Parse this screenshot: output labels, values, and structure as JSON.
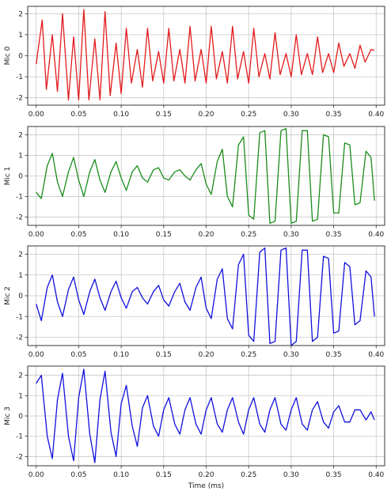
{
  "chart_data": [
    {
      "type": "line",
      "ylabel": "Mic 0",
      "xlabel": "",
      "color": "#e31a1c",
      "xlim": [
        -0.01,
        0.41
      ],
      "ylim": [
        -2.35,
        2.35
      ],
      "xticks": [
        "0.00",
        "0.05",
        "0.10",
        "0.15",
        "0.20",
        "0.25",
        "0.30",
        "0.35",
        "0.40"
      ],
      "yticks": [
        "-2",
        "-1",
        "0",
        "1",
        "2"
      ],
      "grid": true,
      "x": [
        0.0,
        0.007,
        0.012,
        0.019,
        0.025,
        0.031,
        0.038,
        0.044,
        0.05,
        0.056,
        0.062,
        0.069,
        0.075,
        0.081,
        0.087,
        0.094,
        0.1,
        0.106,
        0.112,
        0.119,
        0.125,
        0.131,
        0.137,
        0.144,
        0.15,
        0.156,
        0.162,
        0.169,
        0.175,
        0.181,
        0.187,
        0.194,
        0.2,
        0.206,
        0.212,
        0.219,
        0.225,
        0.231,
        0.237,
        0.244,
        0.25,
        0.256,
        0.262,
        0.269,
        0.275,
        0.281,
        0.287,
        0.294,
        0.3,
        0.306,
        0.312,
        0.319,
        0.325,
        0.331,
        0.337,
        0.344,
        0.35,
        0.356,
        0.362,
        0.369,
        0.375,
        0.381,
        0.387,
        0.394,
        0.398
      ],
      "values": [
        -0.4,
        1.7,
        -1.6,
        1.0,
        -1.7,
        2.0,
        -2.1,
        0.9,
        -2.1,
        2.2,
        -2.1,
        0.8,
        -2.1,
        2.1,
        -1.9,
        0.6,
        -1.8,
        1.3,
        -1.3,
        0.3,
        -1.5,
        1.3,
        -1.2,
        0.2,
        -1.3,
        1.3,
        -1.2,
        0.3,
        -1.3,
        1.4,
        -1.2,
        0.3,
        -1.3,
        1.4,
        -1.1,
        0.2,
        -1.3,
        1.4,
        -1.1,
        0.2,
        -1.3,
        1.3,
        -1.0,
        0.1,
        -1.1,
        1.1,
        -0.9,
        0.1,
        -1.0,
        1.0,
        -0.9,
        0.1,
        -0.9,
        0.9,
        -0.8,
        0.1,
        -0.8,
        0.6,
        -0.5,
        0.1,
        -0.6,
        0.5,
        -0.3,
        0.3,
        0.25
      ]
    },
    {
      "type": "line",
      "ylabel": "Mic 1",
      "xlabel": "",
      "color": "#1a8c1a",
      "xlim": [
        -0.01,
        0.41
      ],
      "ylim": [
        -2.4,
        2.4
      ],
      "xticks": [
        "0.00",
        "0.05",
        "0.10",
        "0.15",
        "0.20",
        "0.25",
        "0.30",
        "0.35",
        "0.40"
      ],
      "yticks": [
        "-2",
        "-1",
        "0",
        "1",
        "2"
      ],
      "grid": true,
      "x": [
        0.0,
        0.006,
        0.013,
        0.019,
        0.025,
        0.031,
        0.038,
        0.044,
        0.05,
        0.056,
        0.063,
        0.069,
        0.075,
        0.081,
        0.088,
        0.094,
        0.1,
        0.106,
        0.113,
        0.119,
        0.125,
        0.131,
        0.138,
        0.144,
        0.15,
        0.156,
        0.163,
        0.169,
        0.175,
        0.181,
        0.188,
        0.194,
        0.2,
        0.206,
        0.213,
        0.219,
        0.225,
        0.231,
        0.238,
        0.244,
        0.25,
        0.256,
        0.263,
        0.269,
        0.275,
        0.281,
        0.288,
        0.294,
        0.3,
        0.306,
        0.313,
        0.319,
        0.325,
        0.331,
        0.338,
        0.344,
        0.35,
        0.356,
        0.363,
        0.369,
        0.375,
        0.381,
        0.388,
        0.394,
        0.398
      ],
      "values": [
        -0.8,
        -1.1,
        0.5,
        1.1,
        -0.3,
        -1.0,
        0.2,
        0.9,
        -0.2,
        -1.0,
        0.2,
        0.8,
        -0.2,
        -0.8,
        0.2,
        0.7,
        -0.1,
        -0.7,
        0.2,
        0.5,
        -0.1,
        -0.3,
        0.3,
        0.4,
        -0.1,
        -0.2,
        0.2,
        0.3,
        0.0,
        -0.2,
        0.3,
        0.6,
        -0.4,
        -0.9,
        0.7,
        1.3,
        -1.0,
        -1.5,
        1.5,
        1.9,
        -1.9,
        -2.1,
        2.1,
        2.2,
        -2.3,
        -2.2,
        2.2,
        2.3,
        -2.3,
        -2.2,
        2.2,
        2.2,
        -2.2,
        -2.1,
        2.0,
        1.9,
        -1.8,
        -1.8,
        1.6,
        1.5,
        -1.4,
        -1.3,
        1.2,
        0.9,
        -1.2
      ]
    },
    {
      "type": "line",
      "ylabel": "Mic 2",
      "xlabel": "",
      "color": "#1010dd",
      "xlim": [
        -0.01,
        0.41
      ],
      "ylim": [
        -2.4,
        2.4
      ],
      "xticks": [
        "0.00",
        "0.05",
        "0.10",
        "0.15",
        "0.20",
        "0.25",
        "0.30",
        "0.35",
        "0.40"
      ],
      "yticks": [
        "-2",
        "-1",
        "0",
        "1",
        "2"
      ],
      "grid": true,
      "x": [
        0.0,
        0.006,
        0.013,
        0.019,
        0.025,
        0.031,
        0.038,
        0.044,
        0.05,
        0.056,
        0.063,
        0.069,
        0.075,
        0.081,
        0.088,
        0.094,
        0.1,
        0.106,
        0.113,
        0.119,
        0.125,
        0.131,
        0.138,
        0.144,
        0.15,
        0.156,
        0.163,
        0.169,
        0.175,
        0.181,
        0.188,
        0.194,
        0.2,
        0.206,
        0.213,
        0.219,
        0.225,
        0.231,
        0.238,
        0.244,
        0.25,
        0.256,
        0.263,
        0.269,
        0.275,
        0.281,
        0.288,
        0.294,
        0.3,
        0.306,
        0.313,
        0.319,
        0.325,
        0.331,
        0.338,
        0.344,
        0.35,
        0.356,
        0.363,
        0.369,
        0.375,
        0.381,
        0.388,
        0.394,
        0.398
      ],
      "values": [
        -0.4,
        -1.2,
        0.4,
        1.0,
        -0.3,
        -1.0,
        0.3,
        0.9,
        -0.2,
        -0.9,
        0.2,
        0.8,
        -0.1,
        -0.7,
        0.2,
        0.7,
        -0.1,
        -0.6,
        0.2,
        0.4,
        -0.1,
        -0.4,
        0.2,
        0.5,
        -0.2,
        -0.5,
        0.2,
        0.6,
        -0.3,
        -0.7,
        0.4,
        0.9,
        -0.6,
        -1.1,
        0.8,
        1.3,
        -1.1,
        -1.6,
        1.5,
        2.0,
        -1.9,
        -2.2,
        2.1,
        2.3,
        -2.3,
        -2.2,
        2.2,
        2.3,
        -2.4,
        -2.2,
        2.2,
        2.2,
        -2.2,
        -2.0,
        1.9,
        1.8,
        -1.8,
        -1.7,
        1.6,
        1.4,
        -1.4,
        -1.2,
        1.2,
        0.9,
        -1.0
      ]
    },
    {
      "type": "line",
      "ylabel": "Mic 3",
      "xlabel": "Time (ms)",
      "color": "#1010dd",
      "xlim": [
        -0.01,
        0.41
      ],
      "ylim": [
        -2.45,
        2.45
      ],
      "xticks": [
        "0.00",
        "0.05",
        "0.10",
        "0.15",
        "0.20",
        "0.25",
        "0.30",
        "0.35",
        "0.40"
      ],
      "yticks": [
        "-2",
        "-1",
        "0",
        "1",
        "2"
      ],
      "grid": true,
      "x": [
        0.0,
        0.006,
        0.013,
        0.019,
        0.025,
        0.031,
        0.038,
        0.044,
        0.05,
        0.056,
        0.063,
        0.069,
        0.075,
        0.081,
        0.088,
        0.094,
        0.1,
        0.106,
        0.113,
        0.119,
        0.125,
        0.131,
        0.138,
        0.144,
        0.15,
        0.156,
        0.163,
        0.169,
        0.175,
        0.181,
        0.188,
        0.194,
        0.2,
        0.206,
        0.213,
        0.219,
        0.225,
        0.231,
        0.238,
        0.244,
        0.25,
        0.256,
        0.263,
        0.269,
        0.275,
        0.281,
        0.288,
        0.294,
        0.3,
        0.306,
        0.313,
        0.319,
        0.325,
        0.331,
        0.338,
        0.344,
        0.35,
        0.356,
        0.363,
        0.369,
        0.375,
        0.381,
        0.388,
        0.394,
        0.398
      ],
      "values": [
        1.6,
        2.0,
        -1.0,
        -2.1,
        0.8,
        2.1,
        -1.0,
        -2.2,
        0.9,
        2.3,
        -0.9,
        -2.3,
        0.8,
        2.2,
        -0.8,
        -2.0,
        0.6,
        1.5,
        -0.5,
        -1.5,
        0.4,
        1.0,
        -0.5,
        -1.0,
        0.3,
        0.9,
        -0.4,
        -0.9,
        0.3,
        0.9,
        -0.4,
        -0.9,
        0.3,
        0.9,
        -0.4,
        -0.8,
        0.3,
        0.9,
        -0.3,
        -0.9,
        0.3,
        0.9,
        -0.4,
        -0.8,
        0.3,
        0.9,
        -0.4,
        -0.7,
        0.3,
        0.9,
        -0.4,
        -0.7,
        0.3,
        0.7,
        -0.3,
        -0.6,
        0.2,
        0.5,
        -0.3,
        -0.3,
        0.3,
        0.3,
        -0.2,
        0.2,
        -0.2
      ]
    }
  ]
}
